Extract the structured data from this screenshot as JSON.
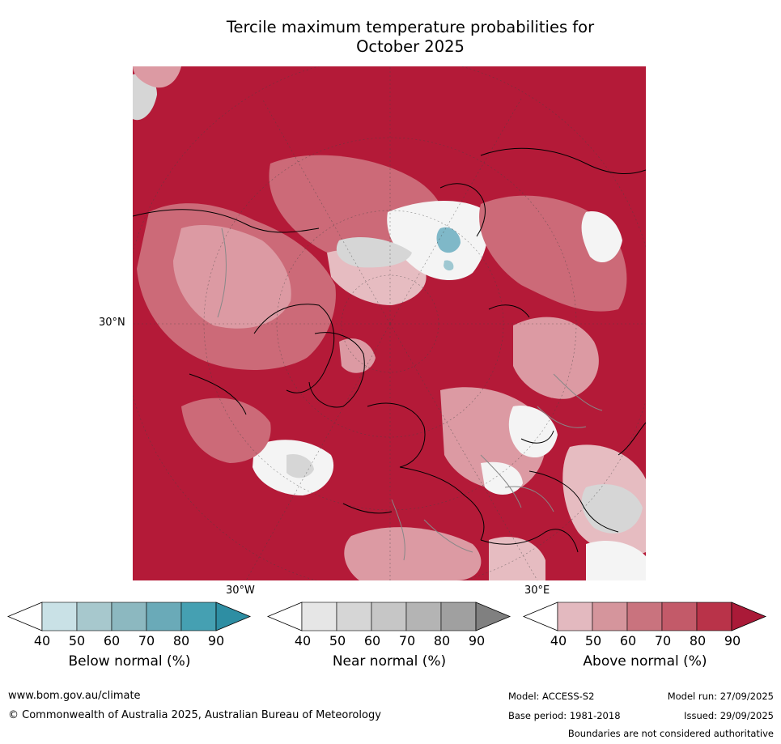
{
  "title_line1": "Tercile maximum temperature probabilities for",
  "title_line2": "October 2025",
  "map": {
    "lat_label": "30°N",
    "lon_labels": [
      "30°W",
      "30°E"
    ],
    "colors": {
      "deep_red": "#b41a38",
      "red": "#c03e55",
      "mid_red": "#cc6a78",
      "light_red": "#dc9aa3",
      "pale_red": "#e6bcc1",
      "white": "#f4f4f4",
      "light_grey": "#d6d6d6",
      "grey": "#b8b8b8",
      "blue": "#7fb8c8"
    }
  },
  "colorbars": [
    {
      "label": "Below normal (%)",
      "ticks": [
        "40",
        "50",
        "60",
        "70",
        "80",
        "90"
      ],
      "colors": [
        "#ffffff",
        "#c9e1e6",
        "#a7c8cd",
        "#8cb8c0",
        "#6aaab8",
        "#45a0b2",
        "#2e8ea3"
      ]
    },
    {
      "label": "Near normal (%)",
      "ticks": [
        "40",
        "50",
        "60",
        "70",
        "80",
        "90"
      ],
      "colors": [
        "#ffffff",
        "#e6e6e6",
        "#d6d6d6",
        "#c6c6c6",
        "#b4b4b4",
        "#a0a0a0",
        "#808080"
      ]
    },
    {
      "label": "Above normal (%)",
      "ticks": [
        "40",
        "50",
        "60",
        "70",
        "80",
        "90"
      ],
      "colors": [
        "#ffffff",
        "#e3b9bf",
        "#d5959c",
        "#c9737e",
        "#c35a69",
        "#b93349",
        "#aa1a38"
      ]
    }
  ],
  "footer": {
    "website": "www.bom.gov.au/climate",
    "copyright": "© Commonwealth of Australia 2025, Australian Bureau of Meteorology",
    "model": "Model: ACCESS-S2",
    "base_period": "Base period: 1981-2018",
    "model_run": "Model run: 27/09/2025",
    "issued": "Issued: 29/09/2025",
    "disclaimer": "Boundaries are not considered authoritative"
  }
}
